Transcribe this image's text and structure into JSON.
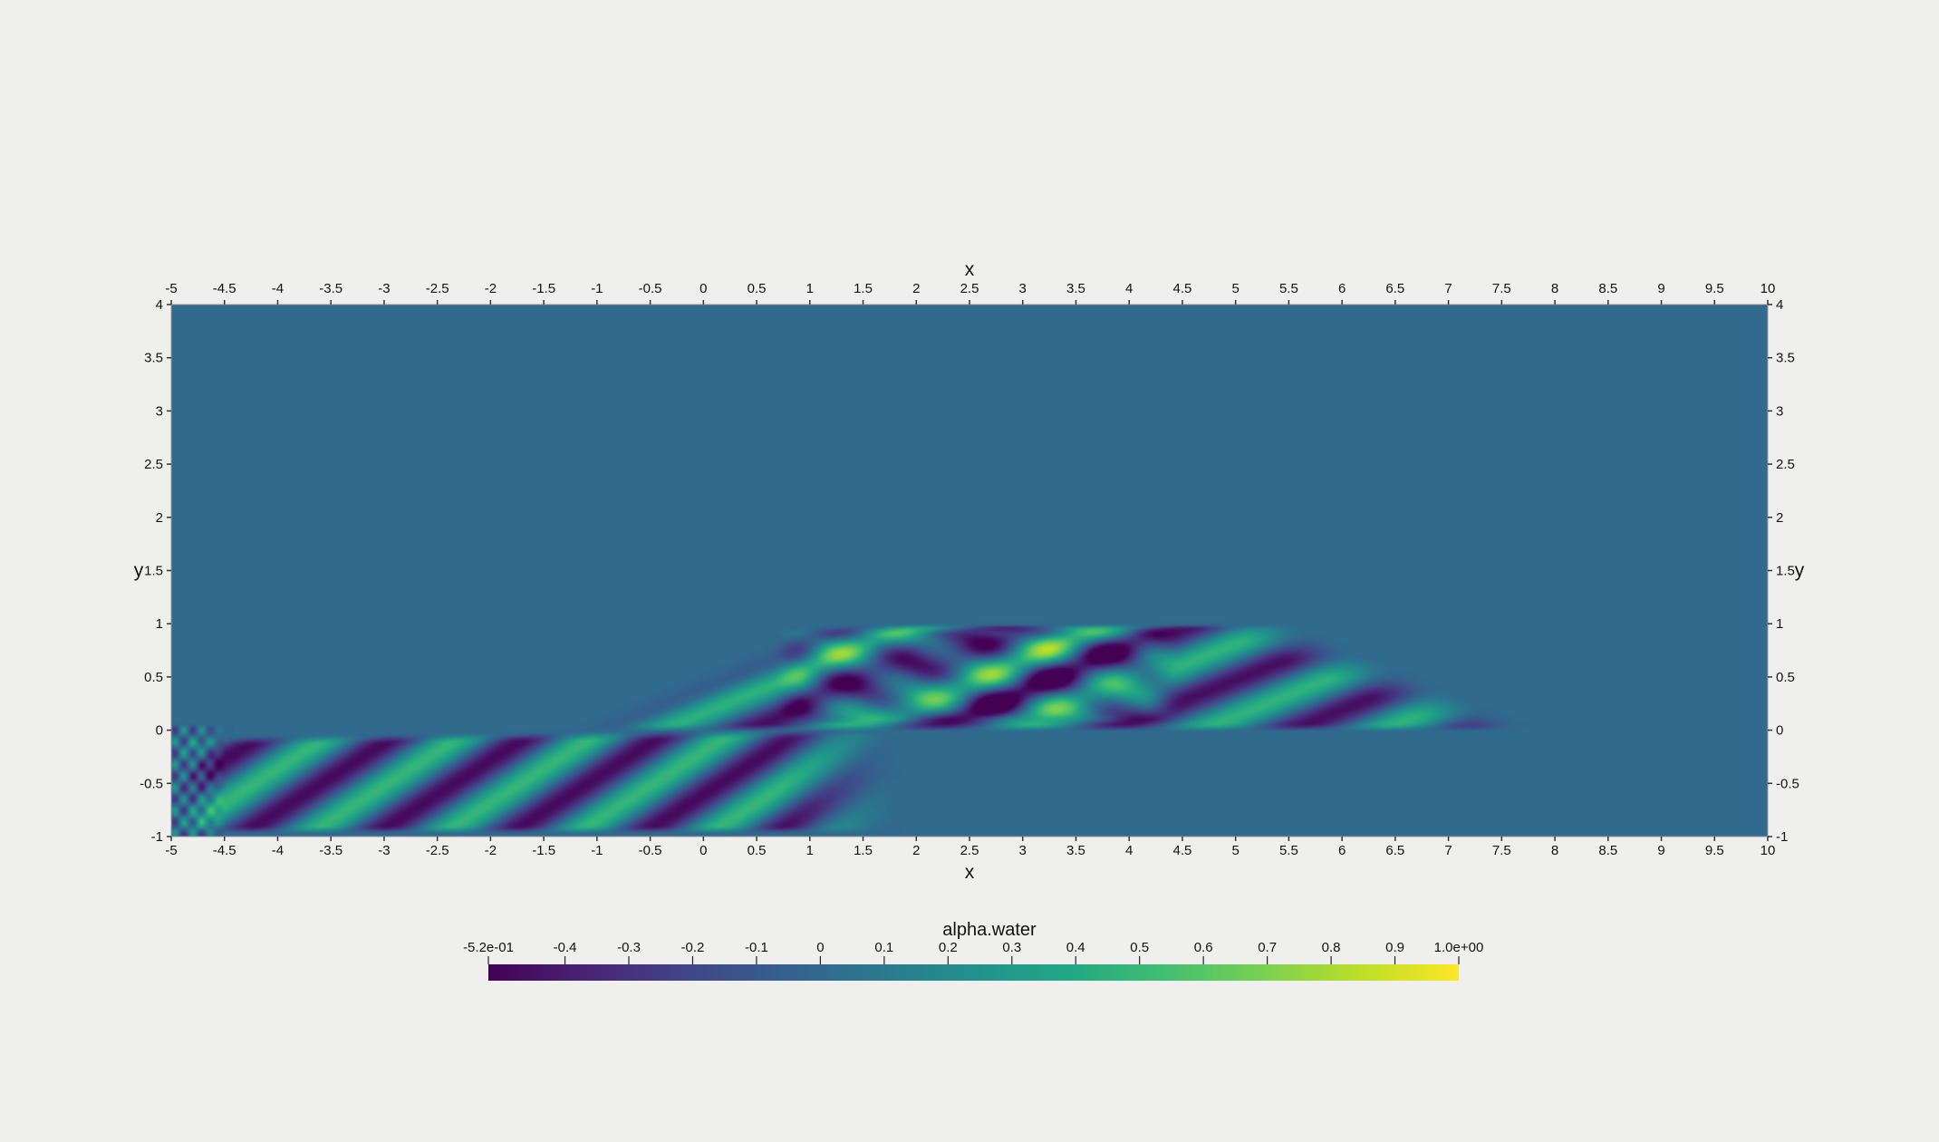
{
  "chart_data": {
    "type": "heatmap",
    "title": "",
    "field": "alpha.water",
    "xlabel": "x",
    "ylabel": "y",
    "xlim": [
      -5,
      10
    ],
    "ylim": [
      -1,
      4
    ],
    "x_ticks": [
      "-5",
      "-4.5",
      "-4",
      "-3.5",
      "-3",
      "-2.5",
      "-2",
      "-1.5",
      "-1",
      "-0.5",
      "0",
      "0.5",
      "1",
      "1.5",
      "2",
      "2.5",
      "3",
      "3.5",
      "4",
      "4.5",
      "5",
      "5.5",
      "6",
      "6.5",
      "7",
      "7.5",
      "8",
      "8.5",
      "9",
      "9.5",
      "10"
    ],
    "y_ticks": [
      "-1",
      "-0.5",
      "0",
      "0.5",
      "1",
      "1.5",
      "2",
      "2.5",
      "3",
      "3.5",
      "4"
    ],
    "x_axes": [
      "top",
      "bottom"
    ],
    "y_axes": [
      "left",
      "right"
    ],
    "colormap": "viridis",
    "colors": [
      "#440154",
      "#3b528b",
      "#21918c",
      "#5ec962",
      "#fde725"
    ],
    "background_color": "#255368",
    "color_range": [
      -0.52,
      1.0
    ],
    "colorbar": {
      "title": "alpha.water",
      "orientation": "horizontal",
      "placement": "bottom-center",
      "tick_labels": [
        "-5.2e-01",
        "-0.4",
        "-0.3",
        "-0.2",
        "-0.1",
        "0",
        "0.1",
        "0.2",
        "0.3",
        "0.4",
        "0.5",
        "0.6",
        "0.7",
        "0.8",
        "0.9",
        "1.0e+00"
      ],
      "tick_values": [
        -0.52,
        -0.4,
        -0.3,
        -0.2,
        -0.1,
        0,
        0.1,
        0.2,
        0.3,
        0.4,
        0.5,
        0.6,
        0.7,
        0.8,
        0.9,
        1.0
      ]
    },
    "regions": {
      "ambient_value": 0.0,
      "lower_stripes": {
        "x_range": [
          -5,
          1.8
        ],
        "y_range": [
          -1,
          0
        ],
        "stripe_count": 6
      },
      "upper_stripes": {
        "x_range": [
          -0.8,
          8
        ],
        "y_range": [
          0,
          1
        ],
        "stripe_count": 5
      },
      "checkerboard": {
        "x_range": [
          0.5,
          4.5
        ],
        "y_range": [
          0,
          1
        ]
      }
    }
  }
}
